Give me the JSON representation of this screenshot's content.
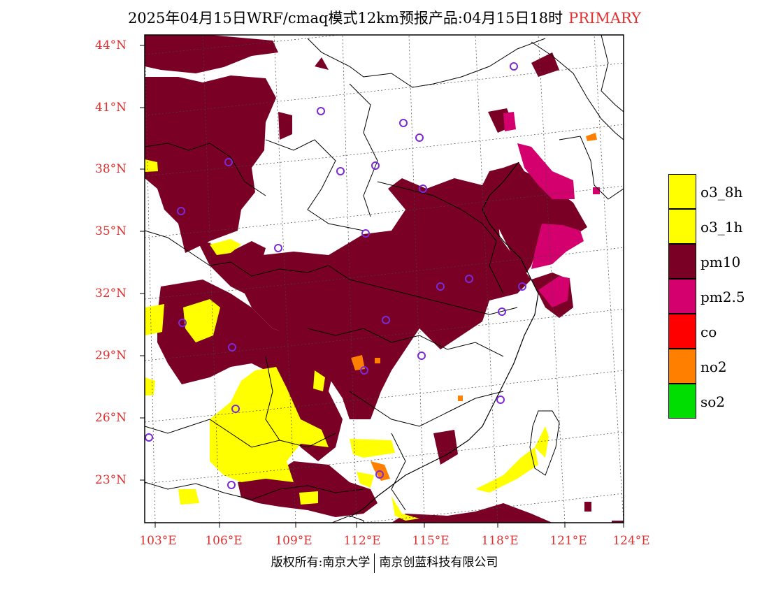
{
  "header": {
    "title": "2025年04月15日WRF/cmaq模式12km预报产品:04月15日18时",
    "primary_label": "PRIMARY"
  },
  "axes": {
    "lat_labels": [
      "44°N",
      "41°N",
      "38°N",
      "35°N",
      "32°N",
      "29°N",
      "26°N",
      "23°N"
    ],
    "lon_labels": [
      "103°E",
      "106°E",
      "109°E",
      "112°E",
      "115°E",
      "118°E",
      "121°E",
      "124°E"
    ]
  },
  "legend": {
    "items": [
      {
        "label": "o3_8h",
        "color": "#ffff00"
      },
      {
        "label": "o3_1h",
        "color": "#ffff00"
      },
      {
        "label": "pm10",
        "color": "#7a0025"
      },
      {
        "label": "pm2.5",
        "color": "#d4006e"
      },
      {
        "label": "co",
        "color": "#ff0000"
      },
      {
        "label": "no2",
        "color": "#ff7f00"
      },
      {
        "label": "so2",
        "color": "#00dd00"
      }
    ]
  },
  "footer": {
    "copyright_left": "版权所有:南京大学",
    "copyright_right": "南京创蓝科技有限公司"
  },
  "colors": {
    "pm10": "#7a0025",
    "pm25": "#d4006e",
    "o3": "#ffff00",
    "no2": "#ff7f00",
    "station": "#7a2ad8",
    "axis_label": "#e03030"
  },
  "map": {
    "station_icon": "circle-marker-icon"
  }
}
